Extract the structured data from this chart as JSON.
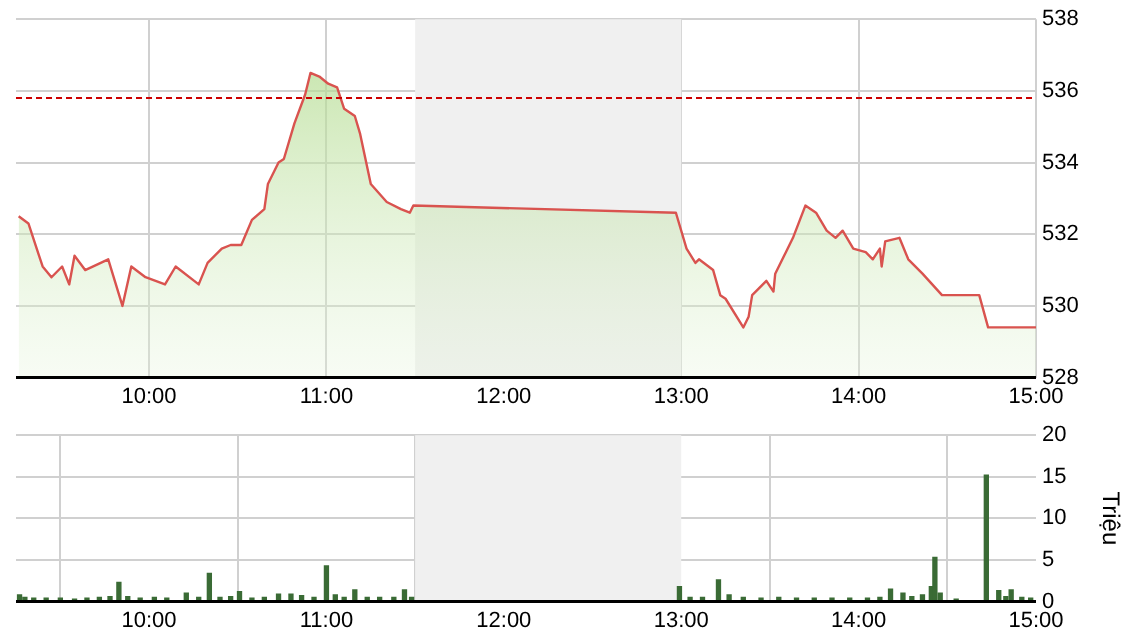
{
  "chart_data": [
    {
      "type": "area",
      "x": [
        9.265,
        9.32,
        9.4,
        9.45,
        9.51,
        9.55,
        9.58,
        9.64,
        9.77,
        9.85,
        9.9,
        9.98,
        10.09,
        10.15,
        10.28,
        10.33,
        10.41,
        10.46,
        10.52,
        10.58,
        10.65,
        10.67,
        10.73,
        10.76,
        10.82,
        10.88,
        10.91,
        10.96,
        11.01,
        11.06,
        11.1,
        11.16,
        11.19,
        11.25,
        11.34,
        11.42,
        11.47,
        11.49,
        12.97,
        13.03,
        13.08,
        13.1,
        13.18,
        13.22,
        13.25,
        13.35,
        13.38,
        13.4,
        13.48,
        13.52,
        13.53,
        13.59,
        13.63,
        13.7,
        13.76,
        13.82,
        13.87,
        13.91,
        13.97,
        14.04,
        14.08,
        14.12,
        14.13,
        14.15,
        14.23,
        14.28,
        14.36,
        14.47,
        14.68,
        14.73,
        15.0
      ],
      "series": [
        {
          "color": "#d9534f",
          "values": [
            532.5,
            532.3,
            531.1,
            530.8,
            531.1,
            530.6,
            531.4,
            531.0,
            531.3,
            530.0,
            531.1,
            530.8,
            530.6,
            531.1,
            530.6,
            531.2,
            531.6,
            531.7,
            531.7,
            532.4,
            532.7,
            533.4,
            534.0,
            534.1,
            535.1,
            535.9,
            536.5,
            536.4,
            536.2,
            536.1,
            535.5,
            535.3,
            534.8,
            533.4,
            532.9,
            532.7,
            532.6,
            532.8,
            532.6,
            531.6,
            531.2,
            531.3,
            531.0,
            530.3,
            530.2,
            529.4,
            529.7,
            530.3,
            530.7,
            530.4,
            530.9,
            531.5,
            531.9,
            532.8,
            532.6,
            532.1,
            531.9,
            532.1,
            531.6,
            531.5,
            531.3,
            531.6,
            531.1,
            531.8,
            531.9,
            531.3,
            530.9,
            530.3,
            530.3,
            529.4,
            529.4
          ]
        }
      ],
      "xlim": [
        9.25,
        15
      ],
      "xticks": [
        {
          "value": 10,
          "label": "10:00"
        },
        {
          "value": 11,
          "label": "11:00"
        },
        {
          "value": 12,
          "label": "12:00"
        },
        {
          "value": 13,
          "label": "13:00"
        },
        {
          "value": 14,
          "label": "14:00"
        },
        {
          "value": 15,
          "label": "15:00"
        }
      ],
      "ylim": [
        528,
        538
      ],
      "yticks": [
        528,
        530,
        532,
        534,
        536,
        538
      ],
      "grid": true,
      "ref_lines": [
        {
          "axis": "y",
          "value": 535.8,
          "color": "#cc0000",
          "line_style": "dashed"
        }
      ],
      "bands": [
        {
          "axis": "x",
          "from": 11.5,
          "to": 13,
          "color": "#f0f0f0"
        }
      ]
    },
    {
      "type": "bar",
      "ylabel": "Triệu",
      "x": [
        9.27,
        9.3,
        9.35,
        9.42,
        9.5,
        9.58,
        9.65,
        9.72,
        9.78,
        9.83,
        9.88,
        9.95,
        10.03,
        10.1,
        10.21,
        10.28,
        10.34,
        10.4,
        10.46,
        10.51,
        10.58,
        10.65,
        10.73,
        10.8,
        10.86,
        10.93,
        11.0,
        11.05,
        11.1,
        11.16,
        11.23,
        11.3,
        11.38,
        11.44,
        11.48,
        12.99,
        13.05,
        13.12,
        13.21,
        13.27,
        13.35,
        13.45,
        13.55,
        13.65,
        13.75,
        13.85,
        13.95,
        14.05,
        14.12,
        14.18,
        14.25,
        14.3,
        14.36,
        14.41,
        14.43,
        14.46,
        14.55,
        14.72,
        14.79,
        14.83,
        14.86,
        14.92,
        14.97
      ],
      "series": [
        {
          "color": "#3a6b35",
          "values": [
            0.8,
            0.5,
            0.4,
            0.4,
            0.4,
            0.3,
            0.4,
            0.5,
            0.6,
            2.3,
            0.6,
            0.4,
            0.5,
            0.4,
            1.0,
            0.5,
            3.4,
            0.5,
            0.6,
            1.2,
            0.4,
            0.5,
            0.9,
            0.9,
            0.7,
            0.5,
            4.3,
            0.8,
            0.5,
            1.4,
            0.5,
            0.5,
            0.5,
            1.4,
            0.5,
            1.8,
            0.5,
            0.5,
            2.6,
            0.8,
            0.5,
            0.4,
            0.5,
            0.4,
            0.4,
            0.4,
            0.4,
            0.4,
            0.5,
            1.5,
            1.0,
            0.6,
            0.8,
            1.8,
            5.3,
            1.0,
            0.3,
            15.2,
            1.3,
            0.6,
            1.4,
            0.5,
            0.4
          ]
        }
      ],
      "xlim": [
        9.25,
        15
      ],
      "xticks": [
        {
          "value": 10,
          "label": "10:00"
        },
        {
          "value": 11,
          "label": "11:00"
        },
        {
          "value": 12,
          "label": "12:00"
        },
        {
          "value": 13,
          "label": "13:00"
        },
        {
          "value": 14,
          "label": "14:00"
        },
        {
          "value": 15,
          "label": "15:00"
        }
      ],
      "ylim": [
        0,
        20
      ],
      "yticks": [
        0,
        5,
        10,
        15,
        20
      ],
      "grid": true,
      "bands": [
        {
          "axis": "x",
          "from": 11.5,
          "to": 13,
          "color": "#f0f0f0"
        }
      ]
    }
  ]
}
